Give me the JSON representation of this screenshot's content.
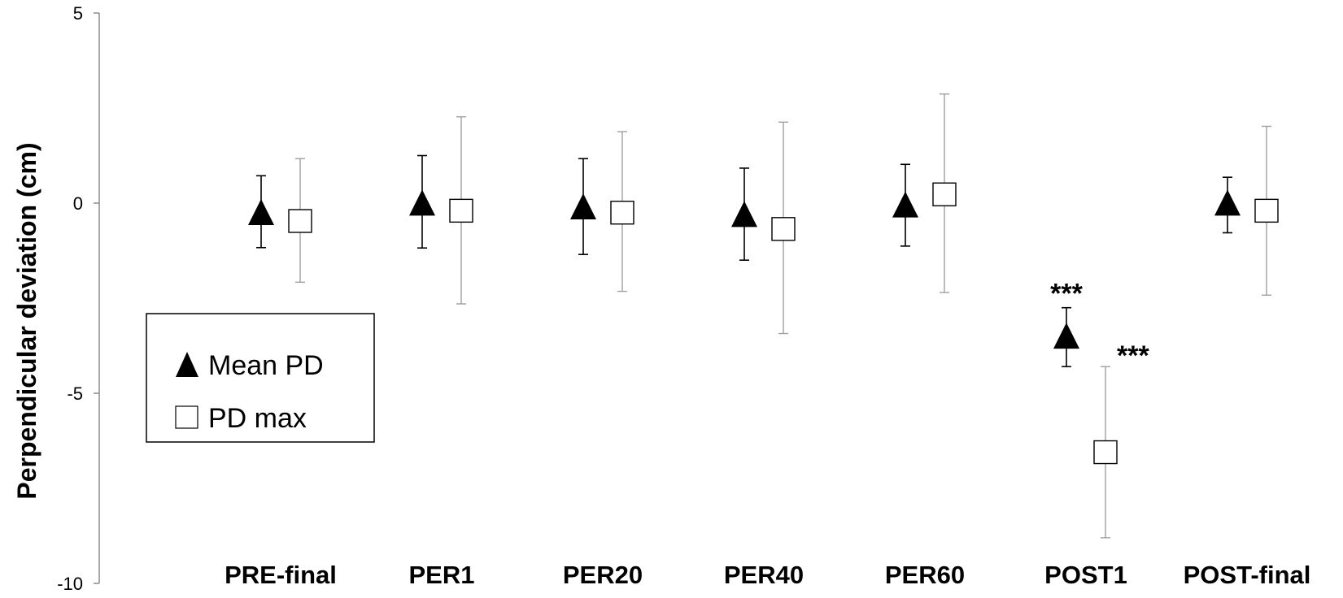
{
  "chart_data": {
    "type": "scatter",
    "title": "",
    "xlabel": "",
    "ylabel": "Perpendicular deviation (cm)",
    "ylim": [
      -10,
      5
    ],
    "yticks": [
      5,
      0,
      -5,
      -10
    ],
    "ytick_labels": [
      "5",
      "0",
      "-5",
      "-10"
    ],
    "grid": false,
    "legend_position": "left",
    "categories": [
      "PRE-final",
      "PER1",
      "PER20",
      "PER40",
      "PER60",
      "POST1",
      "POST-final"
    ],
    "series": [
      {
        "name": "Mean PD",
        "marker": "filled-triangle",
        "color": "#000000",
        "errorbar_color": "#000000",
        "values": [
          -0.3,
          -0.05,
          -0.15,
          -0.35,
          -0.1,
          -3.55,
          -0.05
        ],
        "error_upper": [
          0.72,
          1.25,
          1.17,
          0.92,
          1.02,
          -2.75,
          0.68
        ],
        "error_lower": [
          -1.17,
          -1.18,
          -1.35,
          -1.5,
          -1.13,
          -4.3,
          -0.78
        ]
      },
      {
        "name": "PD max",
        "marker": "open-square",
        "color": "#ffffff",
        "errorbar_color": "#a0a0a0",
        "values": [
          -0.47,
          -0.2,
          -0.25,
          -0.68,
          0.23,
          -6.55,
          -0.2
        ],
        "error_upper": [
          1.17,
          2.27,
          1.88,
          2.13,
          2.87,
          -4.3,
          2.02
        ],
        "error_lower": [
          -2.08,
          -2.65,
          -2.32,
          -3.43,
          -2.35,
          -8.8,
          -2.42
        ]
      }
    ],
    "annotations": [
      {
        "text": "***",
        "series": "Mean PD",
        "category": "POST1",
        "position": "above"
      },
      {
        "text": "***",
        "series": "PD max",
        "category": "POST1",
        "position": "above-right"
      }
    ]
  }
}
